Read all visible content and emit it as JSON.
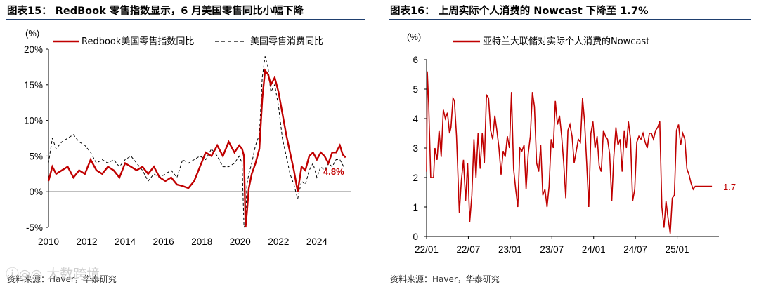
{
  "chart_left": {
    "figure_title": "图表15：  RedBook 零售指数显示，6 月美国零售同比小幅下降",
    "source": "资料来源：Haver，华泰研究",
    "annotation": "4.8%",
    "colors": {
      "series1": "#c00000",
      "series2": "#000000",
      "label": "#c00000"
    },
    "chart_data": {
      "type": "line",
      "ylabel": "(%)",
      "ylim": [
        -5,
        20
      ],
      "yticks": [
        "-5%",
        "0%",
        "5%",
        "10%",
        "15%",
        "20%"
      ],
      "ytick_values": [
        -5,
        0,
        5,
        10,
        15,
        20
      ],
      "xlim": [
        2010,
        2025.8
      ],
      "xticks": [
        "2010",
        "2012",
        "2014",
        "2016",
        "2018",
        "2020",
        "2022",
        "2024"
      ],
      "xtick_values": [
        2010,
        2012,
        2014,
        2016,
        2018,
        2020,
        2022,
        2024
      ],
      "legend_position": "top",
      "series": [
        {
          "name": "Redbook美国零售指数同比",
          "style": "solid",
          "x": [
            2010.0,
            2010.2,
            2010.4,
            2010.7,
            2011.0,
            2011.3,
            2011.6,
            2011.9,
            2012.2,
            2012.5,
            2012.8,
            2013.1,
            2013.4,
            2013.7,
            2014.0,
            2014.3,
            2014.6,
            2014.9,
            2015.2,
            2015.5,
            2015.8,
            2016.1,
            2016.4,
            2016.7,
            2017.0,
            2017.3,
            2017.6,
            2017.9,
            2018.2,
            2018.5,
            2018.8,
            2019.1,
            2019.4,
            2019.7,
            2019.95,
            2020.1,
            2020.2,
            2020.28,
            2020.35,
            2020.45,
            2020.6,
            2020.8,
            2021.0,
            2021.15,
            2021.3,
            2021.45,
            2021.6,
            2021.8,
            2022.0,
            2022.2,
            2022.4,
            2022.6,
            2022.8,
            2023.0,
            2023.2,
            2023.4,
            2023.5,
            2023.6,
            2023.8,
            2024.0,
            2024.2,
            2024.4,
            2024.6,
            2024.8,
            2025.0,
            2025.2,
            2025.35,
            2025.5
          ],
          "values": [
            1.5,
            3.5,
            2.5,
            3.0,
            3.5,
            2.0,
            3.0,
            2.5,
            4.5,
            3.0,
            2.5,
            3.5,
            3.0,
            2.0,
            4.0,
            3.5,
            3.0,
            3.5,
            2.5,
            3.5,
            2.0,
            1.5,
            2.0,
            1.0,
            0.8,
            0.5,
            1.5,
            3.5,
            5.5,
            5.0,
            6.5,
            5.0,
            7.0,
            5.5,
            6.5,
            6.0,
            5.0,
            -5.0,
            -3.0,
            0.5,
            2.5,
            4.0,
            6.0,
            13.0,
            17.0,
            16.5,
            15.0,
            16.0,
            14.0,
            11.0,
            8.0,
            5.5,
            3.0,
            0.0,
            3.5,
            3.0,
            4.0,
            5.0,
            5.5,
            4.5,
            5.5,
            5.0,
            4.0,
            5.5,
            5.5,
            6.5,
            5.2,
            4.8
          ]
        },
        {
          "name": "美国零售消费同比",
          "style": "dashed",
          "x": [
            2010.0,
            2010.2,
            2010.4,
            2010.7,
            2011.0,
            2011.3,
            2011.6,
            2011.9,
            2012.2,
            2012.5,
            2012.8,
            2013.1,
            2013.4,
            2013.7,
            2014.0,
            2014.3,
            2014.6,
            2014.9,
            2015.2,
            2015.5,
            2015.8,
            2016.1,
            2016.4,
            2016.7,
            2017.0,
            2017.3,
            2017.6,
            2017.9,
            2018.2,
            2018.5,
            2018.8,
            2019.1,
            2019.4,
            2019.7,
            2019.95,
            2020.1,
            2020.2,
            2020.28,
            2020.35,
            2020.45,
            2020.6,
            2020.8,
            2021.0,
            2021.15,
            2021.3,
            2021.45,
            2021.6,
            2021.8,
            2022.0,
            2022.2,
            2022.4,
            2022.6,
            2022.8,
            2023.0,
            2023.2,
            2023.4,
            2023.6,
            2023.8,
            2024.0,
            2024.2,
            2024.4,
            2024.6,
            2024.8,
            2025.0,
            2025.2,
            2025.4
          ],
          "values": [
            4.0,
            7.5,
            6.0,
            7.0,
            7.5,
            8.0,
            7.0,
            6.5,
            5.5,
            4.0,
            4.5,
            4.0,
            4.5,
            3.5,
            4.5,
            5.0,
            4.0,
            3.0,
            1.5,
            2.5,
            2.0,
            2.5,
            3.0,
            2.0,
            4.5,
            4.0,
            4.5,
            5.0,
            4.5,
            6.0,
            5.0,
            3.5,
            3.5,
            4.0,
            5.0,
            4.0,
            -5.0,
            -4.5,
            1.0,
            2.5,
            4.0,
            6.5,
            8.0,
            16.0,
            19.0,
            17.5,
            14.0,
            15.0,
            12.0,
            7.5,
            5.0,
            2.5,
            1.0,
            -1.0,
            1.5,
            1.0,
            3.0,
            4.0,
            2.0,
            3.5,
            3.0,
            4.0,
            3.5,
            4.5,
            4.5,
            3.5
          ]
        }
      ]
    }
  },
  "chart_right": {
    "figure_title": "图表16：  上周实际个人消费的 Nowcast 下降至 1.7%",
    "source": "资料来源：Haver，华泰研究",
    "annotation": "1.7",
    "colors": {
      "series1": "#c00000",
      "label": "#c00000"
    },
    "chart_data": {
      "type": "line",
      "ylabel": "(%)",
      "ylim": [
        0,
        6
      ],
      "yticks": [
        "0",
        "1",
        "2",
        "3",
        "4",
        "5",
        "6"
      ],
      "ytick_values": [
        0,
        1,
        2,
        3,
        4,
        5,
        6
      ],
      "xlim": [
        0,
        42
      ],
      "xticks": [
        "22/01",
        "22/07",
        "23/01",
        "23/07",
        "24/01",
        "24/07",
        "25/01"
      ],
      "xtick_values": [
        0,
        6,
        12,
        18,
        24,
        30,
        36
      ],
      "legend_position": "top",
      "series": [
        {
          "name": "亚特兰大联储对实际个人消费的Nowcast",
          "x": [
            0,
            0.1,
            0.3,
            0.6,
            0.9,
            1.0,
            1.2,
            1.5,
            1.8,
            2.1,
            2.4,
            2.7,
            3.0,
            3.3,
            3.5,
            3.8,
            4.0,
            4.3,
            4.7,
            5.0,
            5.3,
            5.6,
            5.9,
            6.2,
            6.5,
            6.8,
            7.1,
            7.4,
            7.7,
            8.0,
            8.3,
            8.6,
            8.9,
            9.2,
            9.5,
            9.8,
            10.1,
            10.4,
            10.7,
            11.0,
            11.3,
            11.6,
            11.9,
            12.2,
            12.5,
            12.8,
            13.1,
            13.4,
            13.7,
            14.0,
            14.3,
            14.6,
            14.9,
            15.2,
            15.5,
            15.8,
            16.1,
            16.4,
            16.7,
            17.0,
            17.3,
            17.6,
            17.9,
            18.2,
            18.5,
            18.8,
            19.1,
            19.4,
            19.7,
            20.0,
            20.3,
            20.6,
            20.9,
            21.2,
            21.5,
            21.8,
            22.1,
            22.4,
            22.7,
            23.0,
            23.3,
            23.6,
            23.9,
            24.2,
            24.5,
            24.8,
            25.1,
            25.4,
            25.7,
            26.0,
            26.3,
            26.6,
            26.9,
            27.2,
            27.5,
            27.8,
            28.1,
            28.4,
            28.7,
            29.0,
            29.3,
            29.6,
            29.9,
            30.2,
            30.5,
            30.8,
            31.1,
            31.4,
            31.7,
            32.0,
            32.3,
            32.6,
            32.9,
            33.2,
            33.5,
            33.8,
            34.1,
            34.4,
            34.7,
            35.0,
            35.3,
            35.6,
            35.9,
            36.2,
            36.5,
            36.8,
            37.1,
            37.4,
            37.7,
            38.0,
            38.3,
            38.6,
            38.9,
            39.2,
            39.5,
            39.8,
            40.1,
            40.4,
            40.7,
            41.0
          ],
          "values": [
            2.2,
            5.6,
            4.5,
            2.0,
            2.0,
            2.0,
            3.0,
            2.6,
            3.6,
            2.7,
            4.3,
            4.0,
            4.2,
            3.5,
            3.7,
            4.7,
            4.6,
            3.4,
            0.8,
            1.9,
            2.6,
            1.2,
            2.5,
            0.5,
            1.4,
            3.3,
            2.0,
            3.5,
            2.3,
            3.5,
            2.5,
            4.8,
            4.7,
            3.6,
            3.3,
            4.1,
            3.6,
            3.0,
            2.1,
            2.9,
            2.7,
            3.4,
            3.0,
            4.9,
            2.3,
            1.6,
            1.0,
            3.0,
            2.9,
            3.1,
            1.6,
            2.8,
            3.4,
            4.9,
            4.4,
            2.5,
            2.2,
            3.1,
            1.4,
            1.6,
            1.0,
            1.7,
            3.3,
            3.0,
            4.6,
            3.8,
            4.1,
            3.4,
            2.5,
            1.3,
            3.6,
            3.8,
            3.4,
            2.5,
            2.9,
            3.3,
            3.2,
            4.7,
            3.9,
            2.5,
            1.0,
            3.5,
            3.9,
            3.0,
            3.4,
            2.4,
            2.2,
            3.6,
            3.4,
            3.3,
            2.8,
            1.2,
            2.7,
            3.7,
            3.1,
            3.3,
            2.2,
            3.6,
            3.0,
            3.9,
            3.3,
            1.2,
            1.6,
            3.2,
            3.4,
            3.3,
            3.5,
            3.2,
            3.0,
            3.5,
            3.5,
            3.3,
            3.6,
            3.7,
            3.9,
            1.0,
            0.3,
            1.2,
            0.6,
            0.1,
            1.3,
            1.4,
            3.6,
            3.8,
            3.1,
            3.5,
            3.3,
            2.3,
            2.1,
            1.8,
            1.6,
            1.7,
            1.7,
            1.7,
            1.7,
            1.7,
            1.7,
            1.7,
            1.7,
            1.7
          ]
        }
      ]
    }
  },
  "watermark": "ⓘ◎◎ 大数跨境"
}
